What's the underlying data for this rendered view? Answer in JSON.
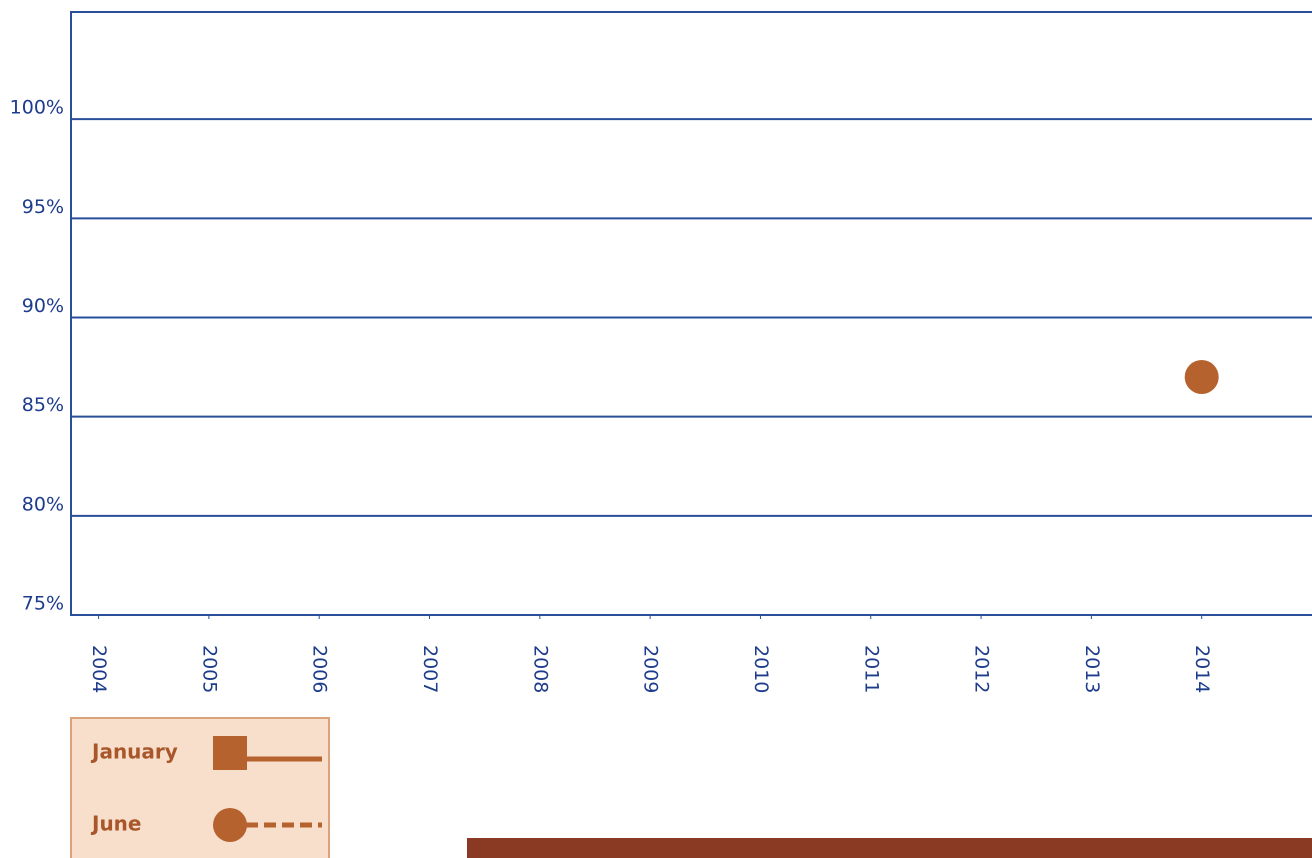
{
  "chart_data": {
    "type": "scatter",
    "x": [
      2014
    ],
    "series": [
      {
        "name": "January",
        "color": "#b5622e",
        "values": [
          null
        ],
        "marker": "square",
        "line": "solid"
      },
      {
        "name": "June",
        "color": "#b5622e",
        "values": [
          87
        ],
        "marker": "circle",
        "line": "dashed"
      }
    ],
    "xlim": [
      2003.75,
      2015
    ],
    "xticks": [
      2004,
      2005,
      2006,
      2007,
      2008,
      2009,
      2010,
      2011,
      2012,
      2013,
      2014
    ],
    "ylim": [
      75,
      105
    ],
    "yticks": [
      {
        "value": 75,
        "label": "75%"
      },
      {
        "value": 80,
        "label": "80%"
      },
      {
        "value": 85,
        "label": "85%"
      },
      {
        "value": 90,
        "label": "90%"
      },
      {
        "value": 95,
        "label": "95%"
      },
      {
        "value": 100,
        "label": "100%"
      }
    ],
    "grid": true,
    "legend": "bottom-left"
  }
}
